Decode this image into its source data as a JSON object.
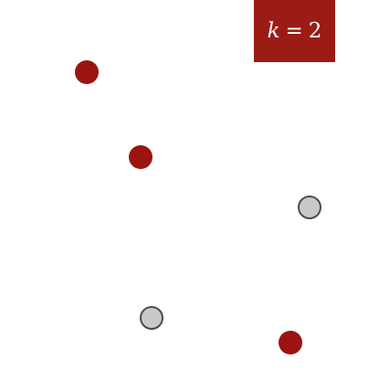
{
  "label": {
    "variable": "k",
    "equals": "=",
    "value": "2"
  },
  "colors": {
    "label_background": "#9b1b15",
    "label_text": "#ffffff",
    "red_point": "#9b1410",
    "gray_point_fill": "#c9c9c9",
    "gray_point_stroke": "#4d4d4d"
  },
  "points": [
    {
      "id": "red-point-1",
      "kind": "red"
    },
    {
      "id": "red-point-2",
      "kind": "red"
    },
    {
      "id": "gray-point-1",
      "kind": "gray"
    },
    {
      "id": "gray-point-2",
      "kind": "gray"
    },
    {
      "id": "red-point-3",
      "kind": "red"
    }
  ]
}
